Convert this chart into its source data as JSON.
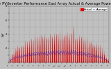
{
  "title": "Solar PV/Inverter Performance East Array Actual & Average Power Output",
  "title_fontsize": 3.8,
  "bg_color": "#c0c0c0",
  "plot_bg": "#c0c0c0",
  "actual_color": "#dd0000",
  "average_color": "#0000cc",
  "average_color2": "#cc0000",
  "ylabel": "kW",
  "ylabel_fontsize": 3.0,
  "ylim": [
    0,
    8
  ],
  "ytick_labels": [
    "",
    "2",
    "",
    "4",
    "",
    "6",
    "",
    "8"
  ],
  "ytick_vals": [
    0,
    1,
    2,
    3,
    4,
    5,
    6,
    7,
    8
  ],
  "grid_color": "#888888",
  "n_points": 600,
  "legend_actual": "Actual",
  "legend_average": "Average",
  "legend_fontsize": 2.8
}
